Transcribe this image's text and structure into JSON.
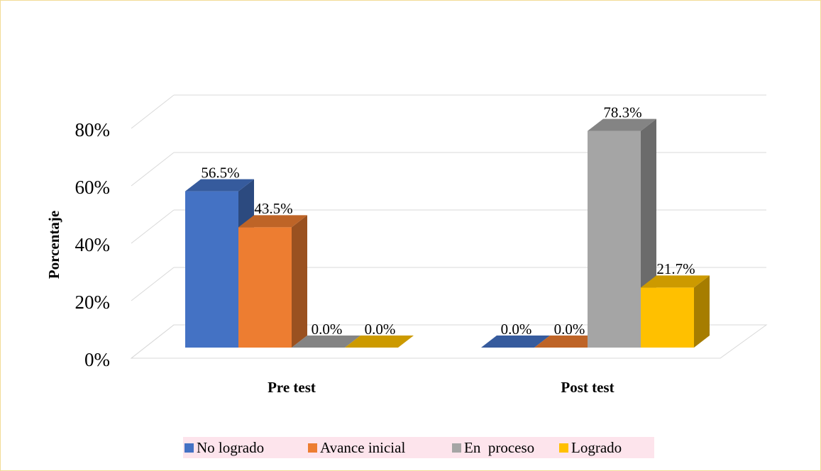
{
  "chart_data": {
    "type": "bar3d",
    "y_label": "Porcentaje",
    "categories": [
      "Pre test",
      "Post test"
    ],
    "series": [
      {
        "name": "No logrado",
        "color": "#4472c4",
        "values": [
          56.5,
          0.0
        ],
        "value_labels": [
          "56.5%",
          "0.0%"
        ]
      },
      {
        "name": "Avance inicial",
        "color": "#ed7d31",
        "values": [
          43.5,
          0.0
        ],
        "value_labels": [
          "43.5%",
          "0.0%"
        ]
      },
      {
        "name": "En  proceso",
        "color": "#a5a5a5",
        "values": [
          0.0,
          78.3
        ],
        "value_labels": [
          "0.0%",
          "78.3%"
        ]
      },
      {
        "name": "Logrado",
        "color": "#ffc000",
        "values": [
          0.0,
          21.7
        ],
        "value_labels": [
          "0.0%",
          "21.7%"
        ]
      }
    ],
    "ylim": [
      0,
      80
    ],
    "yticks": [
      {
        "value": 0,
        "label": "0%"
      },
      {
        "value": 20,
        "label": "20%"
      },
      {
        "value": 40,
        "label": "40%"
      },
      {
        "value": 60,
        "label": "60%"
      },
      {
        "value": 80,
        "label": "80%"
      }
    ],
    "grid": true
  }
}
